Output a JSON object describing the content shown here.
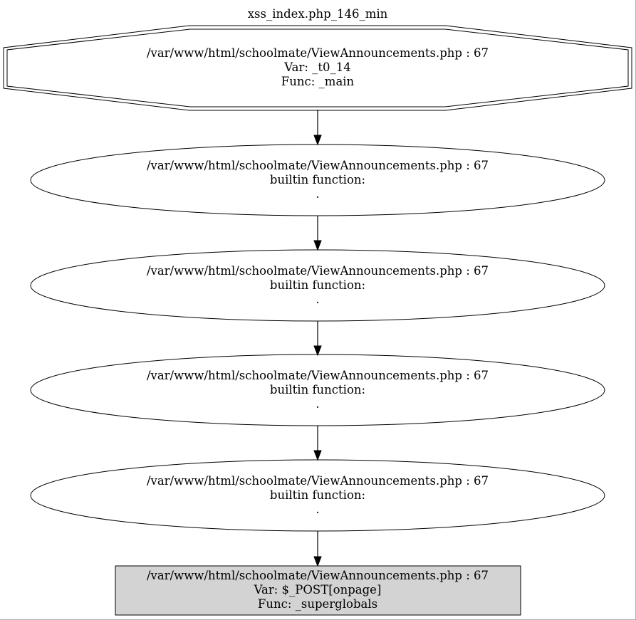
{
  "graph": {
    "title": "xss_index.php_146_min",
    "nodes": [
      {
        "id": "n0",
        "shape": "doubleoctagon",
        "lines": [
          "/var/www/html/schoolmate/ViewAnnouncements.php : 67",
          "Var: _t0_14",
          "Func: _main"
        ]
      },
      {
        "id": "n1",
        "shape": "ellipse",
        "lines": [
          "/var/www/html/schoolmate/ViewAnnouncements.php : 67",
          "builtin function:",
          "."
        ]
      },
      {
        "id": "n2",
        "shape": "ellipse",
        "lines": [
          "/var/www/html/schoolmate/ViewAnnouncements.php : 67",
          "builtin function:",
          "."
        ]
      },
      {
        "id": "n3",
        "shape": "ellipse",
        "lines": [
          "/var/www/html/schoolmate/ViewAnnouncements.php : 67",
          "builtin function:",
          "."
        ]
      },
      {
        "id": "n4",
        "shape": "ellipse",
        "lines": [
          "/var/www/html/schoolmate/ViewAnnouncements.php : 67",
          "builtin function:",
          "."
        ]
      },
      {
        "id": "n5",
        "shape": "box",
        "fill": "#d3d3d3",
        "lines": [
          "/var/www/html/schoolmate/ViewAnnouncements.php : 67",
          "Var: $_POST[onpage]",
          "Func: _superglobals"
        ]
      }
    ],
    "edges": [
      {
        "from": "n0",
        "to": "n1"
      },
      {
        "from": "n1",
        "to": "n2"
      },
      {
        "from": "n2",
        "to": "n3"
      },
      {
        "from": "n3",
        "to": "n4"
      },
      {
        "from": "n4",
        "to": "n5"
      }
    ]
  }
}
